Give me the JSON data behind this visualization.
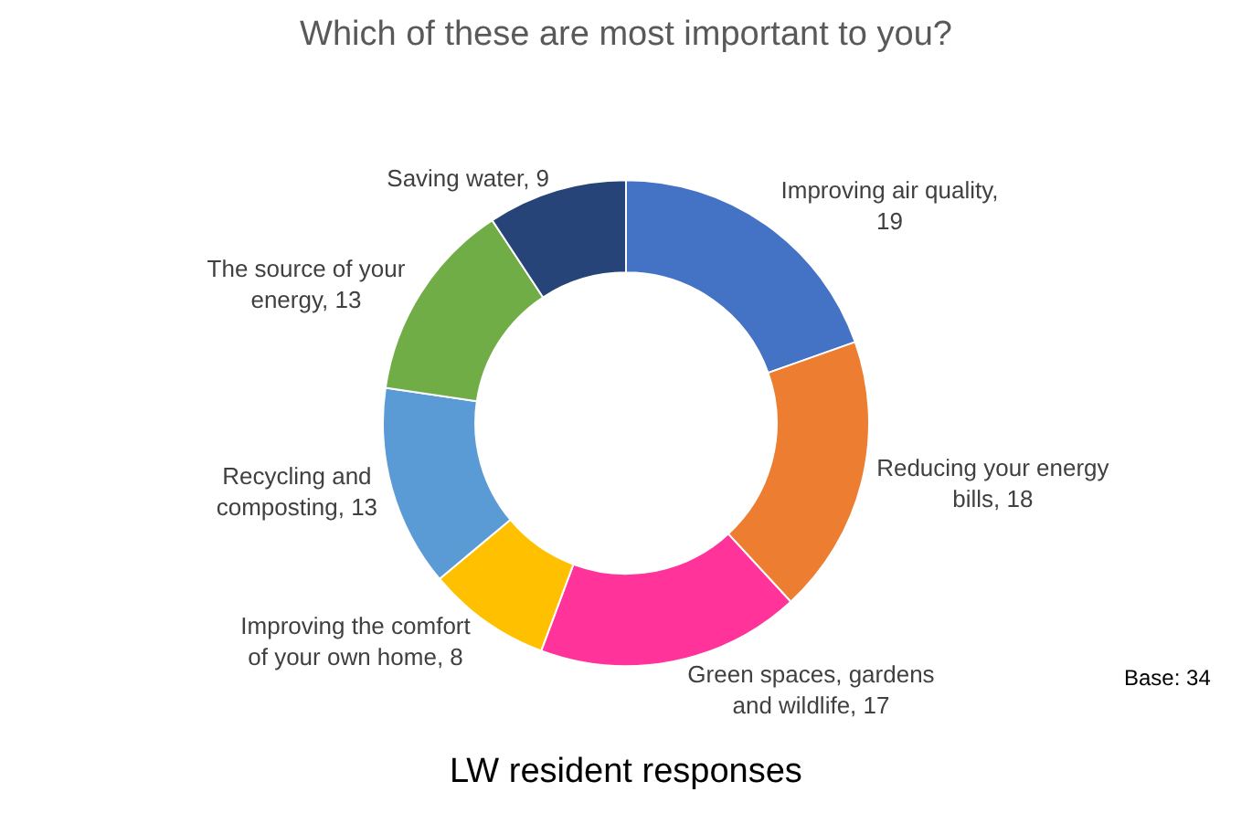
{
  "chart_data": {
    "type": "donut",
    "title": "Which of these are most important to you?",
    "categories": [
      "Improving air quality",
      "Reducing your energy bills",
      "Green spaces, gardens and wildlife",
      "Improving the comfort of your own home",
      "Recycling and composting",
      "The source of your energy",
      "Saving water"
    ],
    "values": [
      19,
      18,
      17,
      8,
      13,
      13,
      9
    ],
    "colors": [
      "#4472c4",
      "#ed7d31",
      "#ff3399",
      "#ffc000",
      "#5b9bd5",
      "#70ad47",
      "#264478"
    ],
    "value_labels": [
      ", 19",
      ", 18",
      ", 17",
      ", 8",
      ", 13",
      ", 13",
      ", 9"
    ],
    "legend": false,
    "annotations": [
      "LW resident responses",
      "Base: 34"
    ]
  }
}
